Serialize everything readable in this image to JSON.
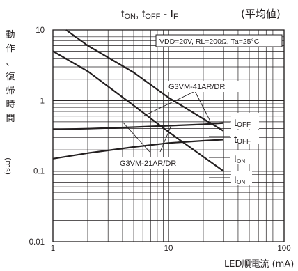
{
  "chart_data": {
    "type": "line",
    "title": "tON, tOFF - IF",
    "title_parts": {
      "t1": "t",
      "s1": "ON",
      "sep": ", t",
      "s2": "OFF",
      "dash": " - I",
      "s3": "F"
    },
    "subtitle": "(平均値)",
    "ylabel_chars": [
      "動",
      "作",
      "、",
      "復",
      "帰",
      "時",
      "間"
    ],
    "ylabel_unit": "(ms)",
    "xlabel": "LED順電流 (mA)",
    "condition": "VDD=20V, RL=200Ω, Ta=25°C",
    "x_scale": "log",
    "y_scale": "log",
    "xlim": [
      1,
      100
    ],
    "ylim": [
      0.01,
      10
    ],
    "x_ticks": [
      "1",
      "10",
      "100"
    ],
    "y_ticks": [
      "10",
      "1",
      "0.1",
      "0.01"
    ],
    "grid": true,
    "series": [
      {
        "name": "tOFF",
        "device": "G3VM-41AR/DR",
        "x": [
          1,
          2,
          5,
          10,
          20,
          30
        ],
        "y": [
          0.39,
          0.4,
          0.42,
          0.44,
          0.46,
          0.48
        ]
      },
      {
        "name": "tOFF",
        "device": "G3VM-21AR/DR",
        "x": [
          1,
          2,
          5,
          10,
          20,
          30
        ],
        "y": [
          0.15,
          0.18,
          0.22,
          0.25,
          0.27,
          0.28
        ]
      },
      {
        "name": "tON",
        "device": "G3VM-41AR/DR",
        "x": [
          1.3,
          2,
          5,
          10,
          20,
          30
        ],
        "y": [
          10,
          6,
          2.5,
          1.1,
          0.55,
          0.37
        ]
      },
      {
        "name": "tON",
        "device": "G3VM-21AR/DR",
        "x": [
          1,
          2,
          5,
          10,
          20,
          30
        ],
        "y": [
          5,
          2.6,
          0.85,
          0.36,
          0.16,
          0.1
        ]
      }
    ],
    "annotations": [
      "G3VM-41AR/DR",
      "G3VM-21AR/DR"
    ]
  }
}
